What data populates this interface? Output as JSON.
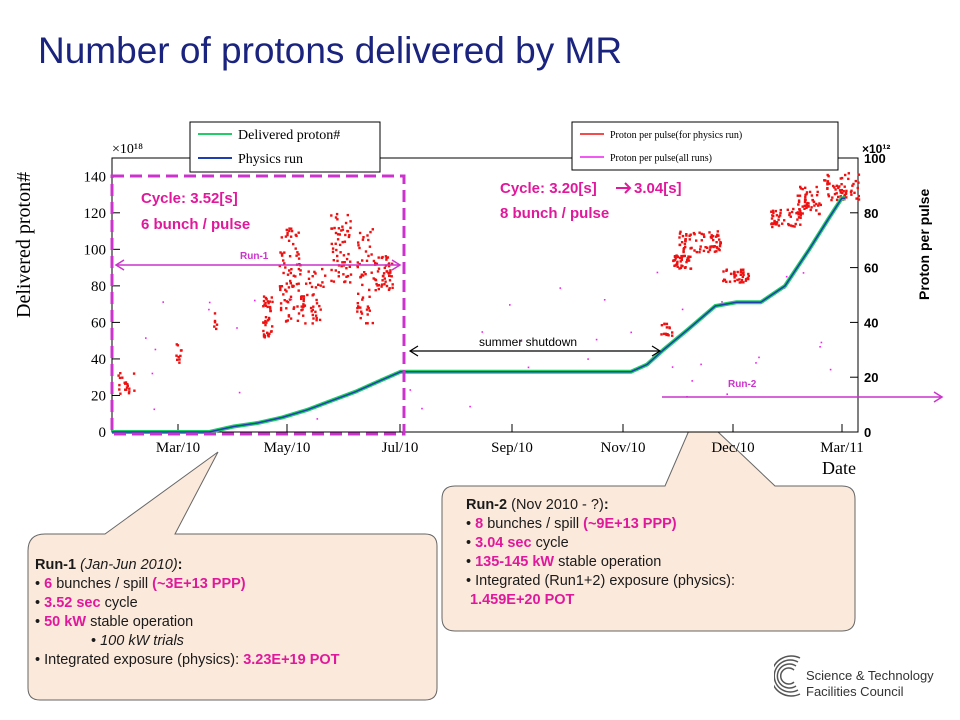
{
  "slide": {
    "title": "Number of protons delivered by MR"
  },
  "chart_data": {
    "type": "line",
    "ylabel_left": "Delivered proton#",
    "ylabel_right": "Proton per pulse",
    "xlabel": "Date",
    "left_axis": {
      "exponent_label": "×10¹⁸",
      "ylim": [
        0,
        150
      ],
      "ticks": [
        "0",
        "20",
        "40",
        "60",
        "80",
        "100",
        "120",
        "140"
      ]
    },
    "right_axis": {
      "exponent_label": "×10¹²",
      "ylim": [
        0,
        100
      ],
      "ticks": [
        "0",
        "20",
        "40",
        "60",
        "80",
        "100"
      ]
    },
    "x_ticks": [
      "Mar/10",
      "May/10",
      "Jul/10",
      "Sep/10",
      "Nov/10",
      "Dec/10",
      "Mar/11"
    ],
    "legend_left": [
      "Delivered proton#",
      "Physics run"
    ],
    "legend_right": [
      "Proton per pulse(for physics run)",
      "Proton per pulse(all runs)"
    ],
    "series_colors": {
      "delivered": "#22cc66",
      "physics": "#1f3fb0",
      "ppp_physics": "#ee1111",
      "ppp_all": "#ee22ee",
      "accent": "#cc33cc"
    },
    "delivered_cumulative": {
      "x_days": [
        0,
        30,
        60,
        75,
        90,
        105,
        120,
        135,
        150,
        165,
        178,
        200,
        260,
        300,
        320,
        330,
        340,
        355,
        372,
        385,
        400,
        415,
        430,
        442,
        450,
        452
      ],
      "y": [
        0,
        0,
        0,
        3,
        5,
        8,
        12,
        17,
        22,
        28,
        33,
        33,
        33,
        33,
        33,
        37,
        45,
        56,
        69,
        71,
        71,
        80,
        100,
        117,
        128,
        128
      ]
    },
    "annotations": {
      "run1_cycle": "Cycle: 3.52[s]",
      "run1_bunch": "6 bunch / pulse",
      "run2_cycle": "Cycle: 3.20[s]",
      "run2_cycle_to": "3.04[s]",
      "run2_bunch": "8 bunch / pulse",
      "run1_label": "Run-1",
      "run2_label": "Run-2",
      "shutdown": "summer shutdown"
    }
  },
  "callouts": {
    "run1": {
      "title": "Run-1",
      "period": "(Jan-Jun 2010)",
      "colon": ":",
      "bunches_value": "6",
      "bunches_text": "bunches / spill",
      "bunches_ppp": "(~3E+13 PPP)",
      "cycle_value": "3.52 sec",
      "cycle_text": "cycle",
      "power_value": "50 kW",
      "power_text": "stable operation",
      "trials": "100 kW trials",
      "exposure_text": "Integrated exposure (physics):",
      "exposure_value": "3.23E+19 POT"
    },
    "run2": {
      "title": "Run-2",
      "period": "(Nov 2010 - ?)",
      "colon": ":",
      "bunches_value": "8",
      "bunches_text": "bunches / spill",
      "bunches_ppp": "(~9E+13 PPP)",
      "cycle_value": "3.04 sec",
      "cycle_text": "cycle",
      "power_value": "135-145 kW",
      "power_text": "stable operation",
      "exposure_text": "Integrated (Run1+2) exposure (physics):",
      "exposure_value": "1.459E+20 POT"
    }
  },
  "logo": {
    "icon": "stfc-logo-icon",
    "line1": "Science & Technology",
    "line2": "Facilities Council"
  }
}
